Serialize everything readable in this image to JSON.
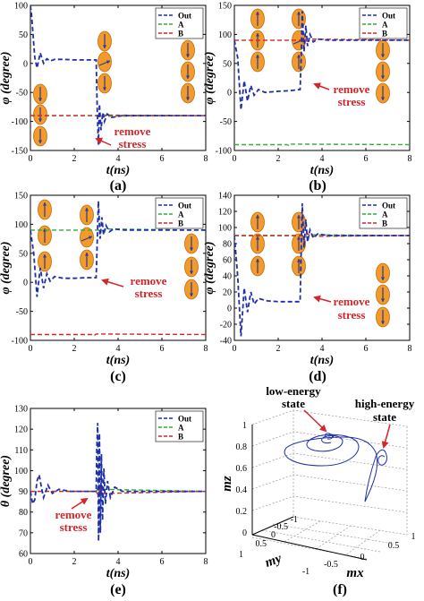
{
  "colors": {
    "out": "#1f2fa8",
    "a": "#2fae3c",
    "b": "#d4252a",
    "annotation": "#d4252a",
    "magnet_fill": "#f29b2a",
    "magnet_edge": "#c46a0e",
    "arrow": "#2a3a9a"
  },
  "panels_text": {
    "a": {
      "label": "(a)",
      "annotation": [
        "remove",
        "stress"
      ]
    },
    "b": {
      "label": "(b)",
      "annotation": [
        "remove",
        "stress"
      ]
    },
    "c": {
      "label": "(c)",
      "annotation": [
        "remove",
        "stress"
      ]
    },
    "d": {
      "label": "(d)",
      "annotation": [
        "remove",
        "stress"
      ]
    },
    "e": {
      "label": "(e)",
      "annotation": [
        "remove",
        "stress"
      ]
    },
    "f": {
      "label": "(f)",
      "annotations": [
        [
          "low-energy",
          "state"
        ],
        [
          "high-energy",
          "state"
        ]
      ]
    }
  },
  "chart_data": [
    {
      "id": "a",
      "type": "line",
      "xlabel": "t(ns)",
      "ylabel": "φ (degree)",
      "xlim": [
        0,
        8
      ],
      "ylim": [
        -150,
        100
      ],
      "xticks": [
        0,
        2,
        4,
        6,
        8
      ],
      "yticks": [
        100,
        50,
        0,
        -50,
        -100,
        -150
      ],
      "legend": [
        "Out",
        "A",
        "B"
      ],
      "legend_position": "top-right",
      "series": [
        {
          "name": "Out",
          "points": [
            [
              0,
              100
            ],
            [
              0.05,
              85
            ],
            [
              0.2,
              10
            ],
            [
              0.3,
              -8
            ],
            [
              0.45,
              18
            ],
            [
              0.6,
              0
            ],
            [
              0.75,
              8
            ],
            [
              0.9,
              4
            ],
            [
              1.1,
              7
            ],
            [
              1.5,
              7
            ],
            [
              2,
              6
            ],
            [
              2.5,
              6
            ],
            [
              3.0,
              6
            ],
            [
              3.05,
              -80
            ],
            [
              3.1,
              -140
            ],
            [
              3.15,
              -70
            ],
            [
              3.22,
              -115
            ],
            [
              3.3,
              -85
            ],
            [
              3.38,
              -100
            ],
            [
              3.5,
              -87
            ],
            [
              3.7,
              -93
            ],
            [
              4.2,
              -90
            ],
            [
              8,
              -90
            ]
          ]
        },
        {
          "name": "A",
          "points": [
            [
              0,
              -90
            ],
            [
              3.2,
              -90
            ],
            [
              3.35,
              -88
            ],
            [
              3.5,
              -91
            ],
            [
              8,
              -90
            ]
          ]
        },
        {
          "name": "B",
          "points": [
            [
              0,
              -90
            ],
            [
              3.2,
              -90
            ],
            [
              3.35,
              -92
            ],
            [
              3.5,
              -89
            ],
            [
              8,
              -90
            ]
          ]
        }
      ]
    },
    {
      "id": "b",
      "type": "line",
      "xlabel": "t(ns)",
      "ylabel": "φ (degree)",
      "xlim": [
        0,
        8
      ],
      "ylim": [
        -100,
        150
      ],
      "xticks": [
        0,
        2,
        4,
        6,
        8
      ],
      "yticks": [
        150,
        100,
        50,
        0,
        -50,
        -100
      ],
      "legend": [
        "Out",
        "A",
        "B"
      ],
      "legend_position": "top-right",
      "series": [
        {
          "name": "Out",
          "points": [
            [
              0,
              90
            ],
            [
              0.15,
              60
            ],
            [
              0.3,
              -30
            ],
            [
              0.45,
              20
            ],
            [
              0.6,
              -15
            ],
            [
              0.75,
              12
            ],
            [
              0.9,
              -5
            ],
            [
              1.1,
              5
            ],
            [
              1.4,
              0
            ],
            [
              2,
              2
            ],
            [
              2.5,
              3
            ],
            [
              3.0,
              5
            ],
            [
              3.05,
              60
            ],
            [
              3.1,
              140
            ],
            [
              3.18,
              70
            ],
            [
              3.26,
              115
            ],
            [
              3.34,
              80
            ],
            [
              3.45,
              100
            ],
            [
              3.6,
              87
            ],
            [
              3.8,
              92
            ],
            [
              4.3,
              90
            ],
            [
              8,
              90
            ]
          ]
        },
        {
          "name": "A",
          "points": [
            [
              0,
              -90
            ],
            [
              2.4,
              -90
            ],
            [
              2.5,
              -92
            ],
            [
              2.6,
              -89
            ],
            [
              8,
              -90
            ]
          ]
        },
        {
          "name": "B",
          "points": [
            [
              0,
              90
            ],
            [
              3.2,
              90
            ],
            [
              3.35,
              88
            ],
            [
              3.5,
              92
            ],
            [
              8,
              90
            ]
          ]
        }
      ]
    },
    {
      "id": "c",
      "type": "line",
      "xlabel": "t(ns)",
      "ylabel": "φ (degree)",
      "xlim": [
        0,
        8
      ],
      "ylim": [
        -100,
        150
      ],
      "xticks": [
        0,
        2,
        4,
        6,
        8
      ],
      "yticks": [
        150,
        100,
        50,
        0,
        -50,
        -100
      ],
      "legend": [
        "Out",
        "A",
        "B"
      ],
      "legend_position": "top-right",
      "series": [
        {
          "name": "Out",
          "points": [
            [
              0,
              90
            ],
            [
              0.15,
              50
            ],
            [
              0.3,
              -25
            ],
            [
              0.45,
              25
            ],
            [
              0.6,
              -10
            ],
            [
              0.75,
              15
            ],
            [
              0.9,
              2
            ],
            [
              1.1,
              10
            ],
            [
              1.5,
              7
            ],
            [
              2,
              7
            ],
            [
              2.5,
              8
            ],
            [
              3.0,
              8
            ],
            [
              3.05,
              70
            ],
            [
              3.1,
              140
            ],
            [
              3.18,
              75
            ],
            [
              3.26,
              112
            ],
            [
              3.34,
              82
            ],
            [
              3.45,
              98
            ],
            [
              3.6,
              87
            ],
            [
              3.8,
              92
            ],
            [
              4.3,
              90
            ],
            [
              8,
              90
            ]
          ]
        },
        {
          "name": "A",
          "points": [
            [
              0,
              90
            ],
            [
              3.2,
              90
            ],
            [
              3.35,
              88
            ],
            [
              3.5,
              92
            ],
            [
              8,
              90
            ]
          ]
        },
        {
          "name": "B",
          "points": [
            [
              0,
              -90
            ],
            [
              2.8,
              -90
            ],
            [
              2.9,
              -92
            ],
            [
              3.0,
              -89
            ],
            [
              8,
              -90
            ]
          ]
        }
      ]
    },
    {
      "id": "d",
      "type": "line",
      "xlabel": "t(ns)",
      "ylabel": "φ (degree)",
      "xlim": [
        0,
        8
      ],
      "ylim": [
        -40,
        140
      ],
      "xticks": [
        0,
        2,
        4,
        6,
        8
      ],
      "yticks": [
        140,
        120,
        100,
        80,
        60,
        40,
        20,
        0,
        -20,
        -40
      ],
      "legend": [
        "Out",
        "A",
        "B"
      ],
      "legend_position": "top-right",
      "series": [
        {
          "name": "Out",
          "points": [
            [
              0,
              90
            ],
            [
              0.15,
              40
            ],
            [
              0.3,
              -35
            ],
            [
              0.45,
              25
            ],
            [
              0.6,
              -5
            ],
            [
              0.75,
              20
            ],
            [
              0.9,
              5
            ],
            [
              1.1,
              12
            ],
            [
              1.5,
              9
            ],
            [
              2,
              8
            ],
            [
              2.5,
              8
            ],
            [
              3.0,
              8
            ],
            [
              3.05,
              70
            ],
            [
              3.1,
              130
            ],
            [
              3.18,
              75
            ],
            [
              3.26,
              110
            ],
            [
              3.34,
              82
            ],
            [
              3.45,
              97
            ],
            [
              3.6,
              87
            ],
            [
              3.8,
              92
            ],
            [
              4.3,
              90
            ],
            [
              8,
              90
            ]
          ]
        },
        {
          "name": "A",
          "points": [
            [
              0,
              90
            ],
            [
              3.2,
              90
            ],
            [
              3.35,
              88
            ],
            [
              3.5,
              91
            ],
            [
              8,
              90
            ]
          ]
        },
        {
          "name": "B",
          "points": [
            [
              0,
              90
            ],
            [
              3.2,
              90
            ],
            [
              3.35,
              92
            ],
            [
              3.5,
              89
            ],
            [
              8,
              90
            ]
          ]
        }
      ]
    },
    {
      "id": "e",
      "type": "line",
      "xlabel": "t(ns)",
      "ylabel": "θ (degree)",
      "xlim": [
        0,
        8
      ],
      "ylim": [
        60,
        130
      ],
      "xticks": [
        0,
        2,
        4,
        6,
        8
      ],
      "yticks": [
        130,
        120,
        110,
        100,
        90,
        80,
        70,
        60
      ],
      "legend": [
        "Out",
        "A",
        "B"
      ],
      "legend_position": "top-right",
      "series": [
        {
          "name": "Out",
          "points": [
            [
              0,
              90
            ],
            [
              0.1,
              84
            ],
            [
              0.2,
              86
            ],
            [
              0.3,
              95
            ],
            [
              0.4,
              98
            ],
            [
              0.5,
              92
            ],
            [
              0.6,
              87
            ],
            [
              0.8,
              93
            ],
            [
              1.0,
              89
            ],
            [
              1.3,
              91
            ],
            [
              1.8,
              90
            ],
            [
              3.0,
              90
            ],
            [
              3.03,
              110
            ],
            [
              3.07,
              123
            ],
            [
              3.11,
              66
            ],
            [
              3.15,
              118
            ],
            [
              3.19,
              70
            ],
            [
              3.24,
              108
            ],
            [
              3.29,
              76
            ],
            [
              3.35,
              101
            ],
            [
              3.42,
              84
            ],
            [
              3.52,
              95
            ],
            [
              3.65,
              87
            ],
            [
              3.85,
              92
            ],
            [
              4.2,
              90
            ],
            [
              8,
              90
            ]
          ]
        },
        {
          "name": "A",
          "points": [
            [
              0,
              90
            ],
            [
              3.0,
              90
            ],
            [
              3.1,
              92
            ],
            [
              3.2,
              88
            ],
            [
              3.3,
              91
            ],
            [
              8,
              90
            ]
          ]
        },
        {
          "name": "B",
          "points": [
            [
              0,
              90
            ],
            [
              3.0,
              90
            ],
            [
              3.1,
              88
            ],
            [
              3.2,
              92
            ],
            [
              3.3,
              89
            ],
            [
              8,
              90
            ]
          ]
        }
      ]
    },
    {
      "id": "f",
      "type": "line3d",
      "xlabel": "mx",
      "ylabel": "my",
      "zlabel": "mz",
      "x_ticks": [
        "-1",
        "-0.5",
        "0",
        "0.5",
        "1"
      ],
      "y_ticks": [
        "-1",
        "-0.5",
        "0",
        "0.5",
        "1"
      ],
      "z_ticks": [
        "0",
        "0.2",
        "0.4",
        "0.6",
        "0.8",
        "1"
      ]
    }
  ]
}
